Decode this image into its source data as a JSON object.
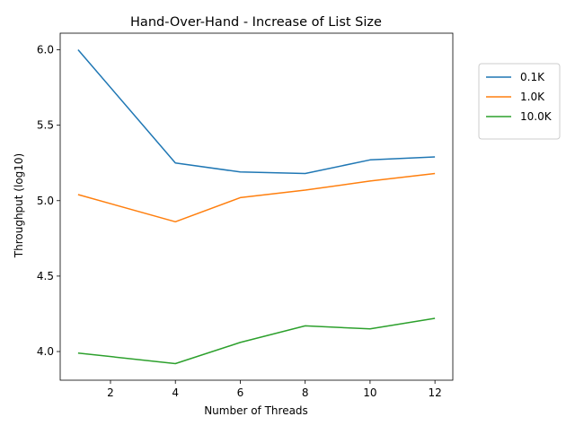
{
  "chart_data": {
    "type": "line",
    "title": "Hand-Over-Hand - Increase of List Size",
    "xlabel": "Number of Threads",
    "ylabel": "Throughput (log10)",
    "xlim": [
      0.45,
      12.55
    ],
    "ylim": [
      3.81,
      6.11
    ],
    "xticks": [
      2,
      4,
      6,
      8,
      10,
      12
    ],
    "yticks": [
      4.0,
      4.5,
      5.0,
      5.5,
      6.0
    ],
    "ytick_labels": [
      "4.0",
      "4.5",
      "5.0",
      "5.5",
      "6.0"
    ],
    "x": [
      1,
      4,
      6,
      8,
      10,
      12
    ],
    "series": [
      {
        "name": "0.1K",
        "color": "#1f77b4",
        "values": [
          6.0,
          5.25,
          5.19,
          5.18,
          5.27,
          5.29
        ]
      },
      {
        "name": "1.0K",
        "color": "#ff7f0e",
        "values": [
          5.04,
          4.86,
          5.02,
          5.07,
          5.13,
          5.18
        ]
      },
      {
        "name": "10.0K",
        "color": "#2ca02c",
        "values": [
          3.99,
          3.92,
          4.06,
          4.17,
          4.15,
          4.22
        ]
      }
    ],
    "legend": {
      "placement": "outside-upper-right"
    },
    "grid": false
  }
}
